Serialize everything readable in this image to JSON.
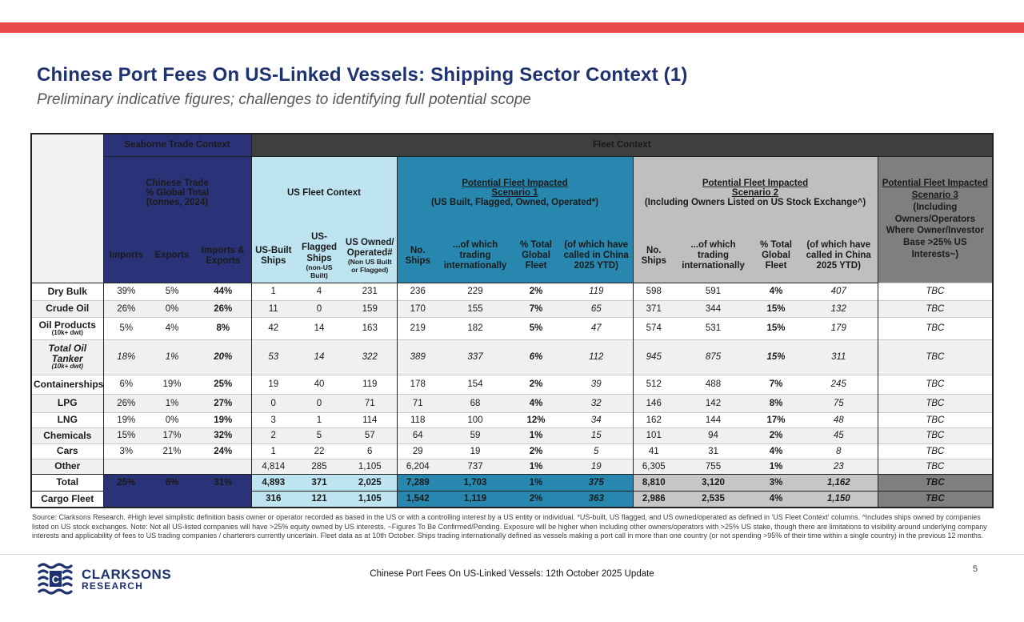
{
  "slide": {
    "title": "Chinese Port Fees On US-Linked Vessels: Shipping Sector Context (1)",
    "subtitle": "Preliminary indicative figures; challenges to identifying full potential scope",
    "page_number": "5",
    "footer_center": "Chinese Port Fees On US-Linked Vessels: 12th October 2025 Update",
    "brand": {
      "line1": "CLARKSONS",
      "line2": "RESEARCH"
    }
  },
  "colors": {
    "accent_red": "#e8494b",
    "navy": "#2a3377",
    "dark_bar": "#3f3f3f",
    "light_blue": "#bee3f1",
    "teal": "#2787ae",
    "light_gray": "#bfbfbf",
    "dark_gray": "#7f7f7f",
    "title_navy": "#1e3272"
  },
  "table": {
    "top_groups": {
      "seaborne": "Seaborne Trade Context",
      "fleet": "Fleet Context"
    },
    "trade": {
      "title_l1": "Chinese Trade",
      "title_l2": "% Global Total",
      "title_l3": "(tonnes, 2024)",
      "cols": [
        "Imports",
        "Exports",
        "Imports & Exports"
      ]
    },
    "us_fleet": {
      "title": "US Fleet Context",
      "cols": [
        {
          "label": "US-Built Ships",
          "small": ""
        },
        {
          "label": "US-Flagged Ships",
          "small": "(non-US Built)"
        },
        {
          "label": "US Owned/ Operated#",
          "small": "(Non US Built or Flagged)"
        }
      ]
    },
    "scenario1": {
      "title_l1": "Potential Fleet Impacted",
      "title_l2": "Scenario 1",
      "subtitle": "(US Built, Flagged, Owned, Operated*)",
      "cols": [
        "No. Ships",
        "...of which trading internationally",
        "% Total Global Fleet",
        "(of which have called in China 2025 YTD)"
      ]
    },
    "scenario2": {
      "title_l1": "Potential Fleet Impacted",
      "title_l2": "Scenario 2",
      "subtitle": "(Including Owners Listed on US Stock Exchange^)",
      "cols": [
        "No. Ships",
        "...of which trading internationally",
        "% Total Global Fleet",
        "(of which have called in China 2025 YTD)"
      ]
    },
    "scenario3": {
      "title": "Potential Fleet Impacted Scenario 3",
      "subtitle": "(Including Owners/Operators Where Owner/Investor Base >25% US Interests~)"
    },
    "rows": [
      {
        "label": "Dry Bulk",
        "sublabel": "",
        "style": "normal",
        "trade": [
          "39%",
          "5%",
          "44%"
        ],
        "us_fleet": [
          "1",
          "4",
          "231"
        ],
        "s1": [
          "236",
          "229",
          "2%",
          "119"
        ],
        "s2": [
          "598",
          "591",
          "4%",
          "407"
        ],
        "s3": "TBC"
      },
      {
        "label": "Crude Oil",
        "sublabel": "",
        "style": "normal",
        "trade": [
          "26%",
          "0%",
          "26%"
        ],
        "us_fleet": [
          "11",
          "0",
          "159"
        ],
        "s1": [
          "170",
          "155",
          "7%",
          "65"
        ],
        "s2": [
          "371",
          "344",
          "15%",
          "132"
        ],
        "s3": "TBC"
      },
      {
        "label": "Oil Products",
        "sublabel": "(10k+ dwt)",
        "style": "normal",
        "trade": [
          "5%",
          "4%",
          "8%"
        ],
        "us_fleet": [
          "42",
          "14",
          "163"
        ],
        "s1": [
          "219",
          "182",
          "5%",
          "47"
        ],
        "s2": [
          "574",
          "531",
          "15%",
          "179"
        ],
        "s3": "TBC"
      },
      {
        "label": "Total Oil Tanker",
        "sublabel": "(10k+ dwt)",
        "style": "italic",
        "trade": [
          "18%",
          "1%",
          "20%"
        ],
        "us_fleet": [
          "53",
          "14",
          "322"
        ],
        "s1": [
          "389",
          "337",
          "6%",
          "112"
        ],
        "s2": [
          "945",
          "875",
          "15%",
          "311"
        ],
        "s3": "TBC"
      },
      {
        "label": "Containerships",
        "sublabel": "",
        "style": "normal",
        "trade": [
          "6%",
          "19%",
          "25%"
        ],
        "us_fleet": [
          "19",
          "40",
          "119"
        ],
        "s1": [
          "178",
          "154",
          "2%",
          "39"
        ],
        "s2": [
          "512",
          "488",
          "7%",
          "245"
        ],
        "s3": "TBC"
      },
      {
        "label": "LPG",
        "sublabel": "",
        "style": "normal",
        "trade": [
          "26%",
          "1%",
          "27%"
        ],
        "us_fleet": [
          "0",
          "0",
          "71"
        ],
        "s1": [
          "71",
          "68",
          "4%",
          "32"
        ],
        "s2": [
          "146",
          "142",
          "8%",
          "75"
        ],
        "s3": "TBC"
      },
      {
        "label": "LNG",
        "sublabel": "",
        "style": "normal",
        "trade": [
          "19%",
          "0%",
          "19%"
        ],
        "us_fleet": [
          "3",
          "1",
          "114"
        ],
        "s1": [
          "118",
          "100",
          "12%",
          "34"
        ],
        "s2": [
          "162",
          "144",
          "17%",
          "48"
        ],
        "s3": "TBC"
      },
      {
        "label": "Chemicals",
        "sublabel": "",
        "style": "normal",
        "trade": [
          "15%",
          "17%",
          "32%"
        ],
        "us_fleet": [
          "2",
          "5",
          "57"
        ],
        "s1": [
          "64",
          "59",
          "1%",
          "15"
        ],
        "s2": [
          "101",
          "94",
          "2%",
          "45"
        ],
        "s3": "TBC"
      },
      {
        "label": "Cars",
        "sublabel": "",
        "style": "normal",
        "trade": [
          "3%",
          "21%",
          "24%"
        ],
        "us_fleet": [
          "1",
          "22",
          "6"
        ],
        "s1": [
          "29",
          "19",
          "2%",
          "5"
        ],
        "s2": [
          "41",
          "31",
          "4%",
          "8"
        ],
        "s3": "TBC"
      },
      {
        "label": "Other",
        "sublabel": "",
        "style": "normal",
        "trade": [
          "",
          "",
          ""
        ],
        "us_fleet": [
          "4,814",
          "285",
          "1,105"
        ],
        "s1": [
          "6,204",
          "737",
          "1%",
          "19"
        ],
        "s2": [
          "6,305",
          "755",
          "1%",
          "23"
        ],
        "s3": "TBC"
      },
      {
        "label": "Total",
        "sublabel": "",
        "style": "total",
        "trade": [
          "25%",
          "6%",
          "31%"
        ],
        "us_fleet": [
          "4,893",
          "371",
          "2,025"
        ],
        "s1": [
          "7,289",
          "1,703",
          "1%",
          "375"
        ],
        "s2": [
          "8,810",
          "3,120",
          "3%",
          "1,162"
        ],
        "s3": "TBC"
      },
      {
        "label": "Cargo Fleet",
        "sublabel": "",
        "style": "cargo",
        "trade": [
          "",
          "",
          ""
        ],
        "us_fleet": [
          "316",
          "121",
          "1,105"
        ],
        "s1": [
          "1,542",
          "1,119",
          "2%",
          "363"
        ],
        "s2": [
          "2,986",
          "2,535",
          "4%",
          "1,150"
        ],
        "s3": "TBC"
      }
    ]
  },
  "footnote": "Source: Clarksons Research. #High level simplistic definition basis owner or operator recorded as based in the US or with a controlling interest by a US entity or individual. *US-built, US flagged, and US owned/operated as defined in 'US Fleet Context' columns. ^Includes ships owned by companies listed on US stock exchanges. Note: Not all US-listed companies will have >25% equity owned by US interests. ~Figures To Be Confirmed/Pending. Exposure will be higher when including other owners/operators with >25% US stake, though there are limitations to visibility around underlying company interests and applicability of fees to US trading companies / charterers currently uncertain. Fleet data as at 10th October. Ships trading internationally defined as vessels making a port call in more than one country (or not spending >95% of their time within a single country) in the previous 12 months."
}
